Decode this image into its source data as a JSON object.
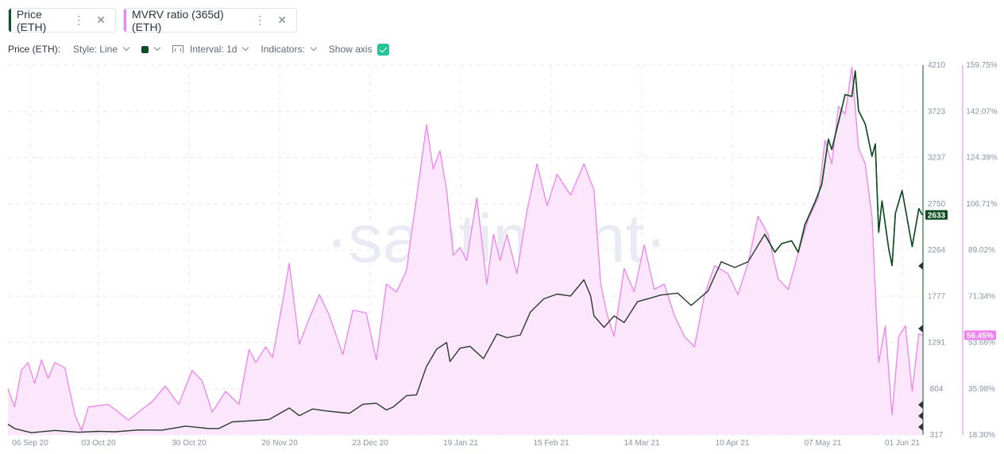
{
  "tabs": [
    {
      "label": "Price (ETH)",
      "color": "#0e4d1f"
    },
    {
      "label": "MVRV ratio (365d) (ETH)",
      "color": "#ee82ee"
    }
  ],
  "settings": {
    "metric_label": "Price (ETH):",
    "style": "Style: Line",
    "color": "#0e4d1f",
    "interval": "Interval: 1d",
    "indicators": "Indicators:",
    "show_axis": "Show axis",
    "show_axis_checked": true
  },
  "watermark": "·santiment·",
  "chart_data": {
    "type": "line",
    "x_ticks": [
      "06 Sep 20",
      "03 Oct 20",
      "30 Oct 20",
      "26 Nov 20",
      "23 Dec 20",
      "19 Jan 21",
      "15 Feb 21",
      "14 Mar 21",
      "10 Apr 21",
      "07 May 21",
      "01 Jun 21"
    ],
    "x_range": [
      "2020-09-01",
      "2021-06-01"
    ],
    "grid": true,
    "series": [
      {
        "name": "Price (ETH)",
        "color": "#0e4d1f",
        "axis": "left",
        "axis_ticks": [
          "4210",
          "3723",
          "3237",
          "2750",
          "2264",
          "1777",
          "1291",
          "804",
          "317"
        ],
        "ylim": [
          317,
          4210
        ],
        "last_value": "2633",
        "points": [
          [
            "2020-09-01",
            430
          ],
          [
            "2020-09-03",
            385
          ],
          [
            "2020-09-08",
            340
          ],
          [
            "2020-09-15",
            365
          ],
          [
            "2020-09-22",
            345
          ],
          [
            "2020-09-28",
            355
          ],
          [
            "2020-10-03",
            350
          ],
          [
            "2020-10-10",
            370
          ],
          [
            "2020-10-17",
            368
          ],
          [
            "2020-10-24",
            410
          ],
          [
            "2020-10-31",
            385
          ],
          [
            "2020-11-03",
            385
          ],
          [
            "2020-11-07",
            455
          ],
          [
            "2020-11-12",
            465
          ],
          [
            "2020-11-18",
            480
          ],
          [
            "2020-11-24",
            600
          ],
          [
            "2020-11-27",
            520
          ],
          [
            "2020-12-01",
            590
          ],
          [
            "2020-12-05",
            570
          ],
          [
            "2020-12-09",
            555
          ],
          [
            "2020-12-12",
            545
          ],
          [
            "2020-12-16",
            640
          ],
          [
            "2020-12-20",
            650
          ],
          [
            "2020-12-23",
            580
          ],
          [
            "2020-12-25",
            610
          ],
          [
            "2020-12-29",
            730
          ],
          [
            "2021-01-01",
            740
          ],
          [
            "2021-01-04",
            1040
          ],
          [
            "2021-01-07",
            1220
          ],
          [
            "2021-01-10",
            1290
          ],
          [
            "2021-01-11",
            1090
          ],
          [
            "2021-01-14",
            1230
          ],
          [
            "2021-01-17",
            1250
          ],
          [
            "2021-01-21",
            1120
          ],
          [
            "2021-01-25",
            1380
          ],
          [
            "2021-01-28",
            1340
          ],
          [
            "2021-02-01",
            1370
          ],
          [
            "2021-02-04",
            1610
          ],
          [
            "2021-02-08",
            1750
          ],
          [
            "2021-02-12",
            1800
          ],
          [
            "2021-02-16",
            1780
          ],
          [
            "2021-02-20",
            1950
          ],
          [
            "2021-02-22",
            1780
          ],
          [
            "2021-02-23",
            1570
          ],
          [
            "2021-02-26",
            1450
          ],
          [
            "2021-03-01",
            1570
          ],
          [
            "2021-03-04",
            1500
          ],
          [
            "2021-03-08",
            1720
          ],
          [
            "2021-03-12",
            1760
          ],
          [
            "2021-03-15",
            1790
          ],
          [
            "2021-03-20",
            1810
          ],
          [
            "2021-03-24",
            1680
          ],
          [
            "2021-03-29",
            1830
          ],
          [
            "2021-04-02",
            2140
          ],
          [
            "2021-04-06",
            2080
          ],
          [
            "2021-04-10",
            2140
          ],
          [
            "2021-04-15",
            2430
          ],
          [
            "2021-04-18",
            2240
          ],
          [
            "2021-04-20",
            2330
          ],
          [
            "2021-04-23",
            2360
          ],
          [
            "2021-04-25",
            2240
          ],
          [
            "2021-04-27",
            2530
          ],
          [
            "2021-04-30",
            2770
          ],
          [
            "2021-05-02",
            2950
          ],
          [
            "2021-05-04",
            3430
          ],
          [
            "2021-05-05",
            3320
          ],
          [
            "2021-05-09",
            3900
          ],
          [
            "2021-05-11",
            3880
          ],
          [
            "2021-05-12",
            4150
          ],
          [
            "2021-05-13",
            3730
          ],
          [
            "2021-05-15",
            3590
          ],
          [
            "2021-05-17",
            3250
          ],
          [
            "2021-05-18",
            3380
          ],
          [
            "2021-05-19",
            2450
          ],
          [
            "2021-05-20",
            2780
          ],
          [
            "2021-05-22",
            2280
          ],
          [
            "2021-05-23",
            2100
          ],
          [
            "2021-05-24",
            2650
          ],
          [
            "2021-05-26",
            2890
          ],
          [
            "2021-05-29",
            2300
          ],
          [
            "2021-05-31",
            2700
          ],
          [
            "2021-06-01",
            2633
          ]
        ]
      },
      {
        "name": "MVRV ratio (365d) (ETH)",
        "color": "#ee82ee",
        "axis": "right",
        "axis_ticks": [
          "159.75%",
          "142.07%",
          "124.39%",
          "106.71%",
          "89.02%",
          "71.34%",
          "53.66%",
          "35.98%",
          "18.30%"
        ],
        "ylim": [
          18.3,
          159.75
        ],
        "last_value": "56.45%",
        "points": [
          [
            "2020-09-01",
            36
          ],
          [
            "2020-09-03",
            29
          ],
          [
            "2020-09-05",
            43
          ],
          [
            "2020-09-07",
            46
          ],
          [
            "2020-09-09",
            38
          ],
          [
            "2020-09-11",
            47
          ],
          [
            "2020-09-13",
            40
          ],
          [
            "2020-09-15",
            46
          ],
          [
            "2020-09-18",
            44
          ],
          [
            "2020-09-21",
            26
          ],
          [
            "2020-09-23",
            20
          ],
          [
            "2020-09-25",
            29
          ],
          [
            "2020-10-01",
            30
          ],
          [
            "2020-10-07",
            24
          ],
          [
            "2020-10-10",
            27
          ],
          [
            "2020-10-14",
            31
          ],
          [
            "2020-10-18",
            37
          ],
          [
            "2020-10-22",
            30
          ],
          [
            "2020-10-26",
            43
          ],
          [
            "2020-10-29",
            39
          ],
          [
            "2020-11-01",
            27
          ],
          [
            "2020-11-05",
            35
          ],
          [
            "2020-11-09",
            30
          ],
          [
            "2020-11-12",
            51
          ],
          [
            "2020-11-14",
            46
          ],
          [
            "2020-11-17",
            52
          ],
          [
            "2020-11-19",
            48
          ],
          [
            "2020-11-22",
            69
          ],
          [
            "2020-11-24",
            84
          ],
          [
            "2020-11-27",
            53
          ],
          [
            "2020-11-30",
            63
          ],
          [
            "2020-12-03",
            72
          ],
          [
            "2020-12-06",
            64
          ],
          [
            "2020-12-10",
            49
          ],
          [
            "2020-12-13",
            66
          ],
          [
            "2020-12-17",
            65
          ],
          [
            "2020-12-20",
            47
          ],
          [
            "2020-12-23",
            76
          ],
          [
            "2020-12-26",
            73
          ],
          [
            "2020-12-29",
            81
          ],
          [
            "2020-12-31",
            100
          ],
          [
            "2021-01-02",
            118
          ],
          [
            "2021-01-04",
            137
          ],
          [
            "2021-01-06",
            120
          ],
          [
            "2021-01-08",
            127
          ],
          [
            "2021-01-10",
            112
          ],
          [
            "2021-01-12",
            87
          ],
          [
            "2021-01-14",
            90
          ],
          [
            "2021-01-16",
            85
          ],
          [
            "2021-01-19",
            109
          ],
          [
            "2021-01-22",
            76
          ],
          [
            "2021-01-24",
            95
          ],
          [
            "2021-01-26",
            85
          ],
          [
            "2021-01-28",
            95
          ],
          [
            "2021-01-31",
            80
          ],
          [
            "2021-02-03",
            104
          ],
          [
            "2021-02-06",
            122
          ],
          [
            "2021-02-09",
            106
          ],
          [
            "2021-02-12",
            118
          ],
          [
            "2021-02-16",
            110
          ],
          [
            "2021-02-20",
            122
          ],
          [
            "2021-02-23",
            112
          ],
          [
            "2021-02-25",
            76
          ],
          [
            "2021-02-27",
            64
          ],
          [
            "2021-03-01",
            56
          ],
          [
            "2021-03-04",
            82
          ],
          [
            "2021-03-07",
            73
          ],
          [
            "2021-03-10",
            91
          ],
          [
            "2021-03-13",
            74
          ],
          [
            "2021-03-16",
            76
          ],
          [
            "2021-03-19",
            64
          ],
          [
            "2021-03-22",
            56
          ],
          [
            "2021-03-25",
            52
          ],
          [
            "2021-03-28",
            72
          ],
          [
            "2021-03-31",
            83
          ],
          [
            "2021-04-04",
            80
          ],
          [
            "2021-04-07",
            72
          ],
          [
            "2021-04-10",
            84
          ],
          [
            "2021-04-13",
            102
          ],
          [
            "2021-04-16",
            95
          ],
          [
            "2021-04-19",
            78
          ],
          [
            "2021-04-22",
            74
          ],
          [
            "2021-04-25",
            88
          ],
          [
            "2021-04-28",
            101
          ],
          [
            "2021-05-01",
            109
          ],
          [
            "2021-05-03",
            131
          ],
          [
            "2021-05-05",
            122
          ],
          [
            "2021-05-07",
            144
          ],
          [
            "2021-05-09",
            141
          ],
          [
            "2021-05-11",
            159
          ],
          [
            "2021-05-13",
            128
          ],
          [
            "2021-05-15",
            122
          ],
          [
            "2021-05-17",
            102
          ],
          [
            "2021-05-19",
            46
          ],
          [
            "2021-05-21",
            60
          ],
          [
            "2021-05-23",
            26
          ],
          [
            "2021-05-25",
            56
          ],
          [
            "2021-05-27",
            60
          ],
          [
            "2021-05-29",
            35
          ],
          [
            "2021-05-31",
            57
          ],
          [
            "2021-06-01",
            56.45
          ]
        ]
      }
    ]
  }
}
